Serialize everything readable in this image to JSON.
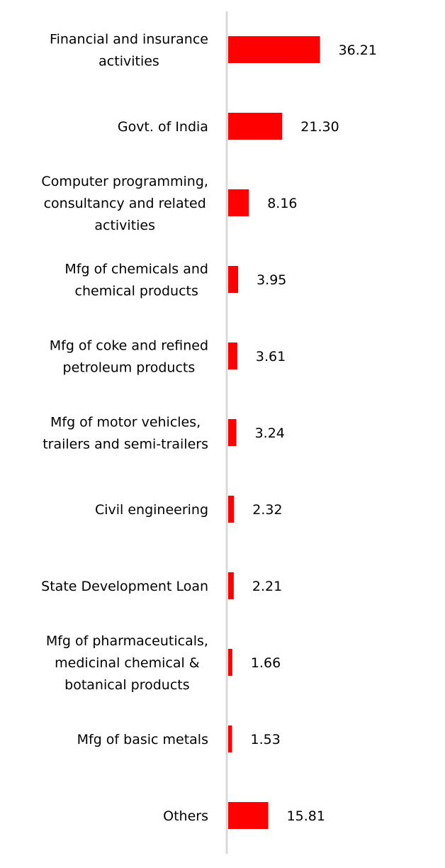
{
  "chart_data": {
    "type": "bar",
    "orientation": "horizontal",
    "categories": [
      "Financial and insurance activities",
      "Govt. of India",
      "Computer programming, consultancy and related activities",
      "Mfg of chemicals and chemical products",
      "Mfg of coke and refined petroleum products",
      "Mfg of motor vehicles, trailers and semi-trailers",
      "Civil engineering",
      "State Development Loan",
      "Mfg of pharmaceuticals, medicinal chemical & botanical products",
      "Mfg of basic metals",
      "Others"
    ],
    "category_lines": [
      [
        "Financial and insurance",
        "activities"
      ],
      [
        "Govt. of India"
      ],
      [
        "Computer programming,",
        "consultancy and related",
        "activities"
      ],
      [
        "Mfg of chemicals and",
        "chemical products"
      ],
      [
        "Mfg of coke and refined",
        "petroleum products"
      ],
      [
        "Mfg of motor vehicles,",
        "trailers and semi-trailers"
      ],
      [
        "Civil engineering"
      ],
      [
        "State Development Loan"
      ],
      [
        "Mfg of pharmaceuticals,",
        "medicinal chemical &",
        "botanical products"
      ],
      [
        "Mfg of basic metals"
      ],
      [
        "Others"
      ]
    ],
    "values": [
      36.21,
      21.3,
      8.16,
      3.95,
      3.61,
      3.24,
      2.32,
      2.21,
      1.66,
      1.53,
      15.81
    ],
    "value_labels": [
      "36.21",
      "21.30",
      "8.16",
      "3.95",
      "3.61",
      "3.24",
      "2.32",
      "2.21",
      "1.66",
      "1.53",
      "15.81"
    ],
    "xlim": [
      0,
      100
    ],
    "title": "",
    "xlabel": "",
    "ylabel": "",
    "grid": false,
    "legend": "none",
    "colors": {
      "bar": "#ff0000",
      "axis": "#d9d9d9",
      "text": "#000000"
    }
  }
}
